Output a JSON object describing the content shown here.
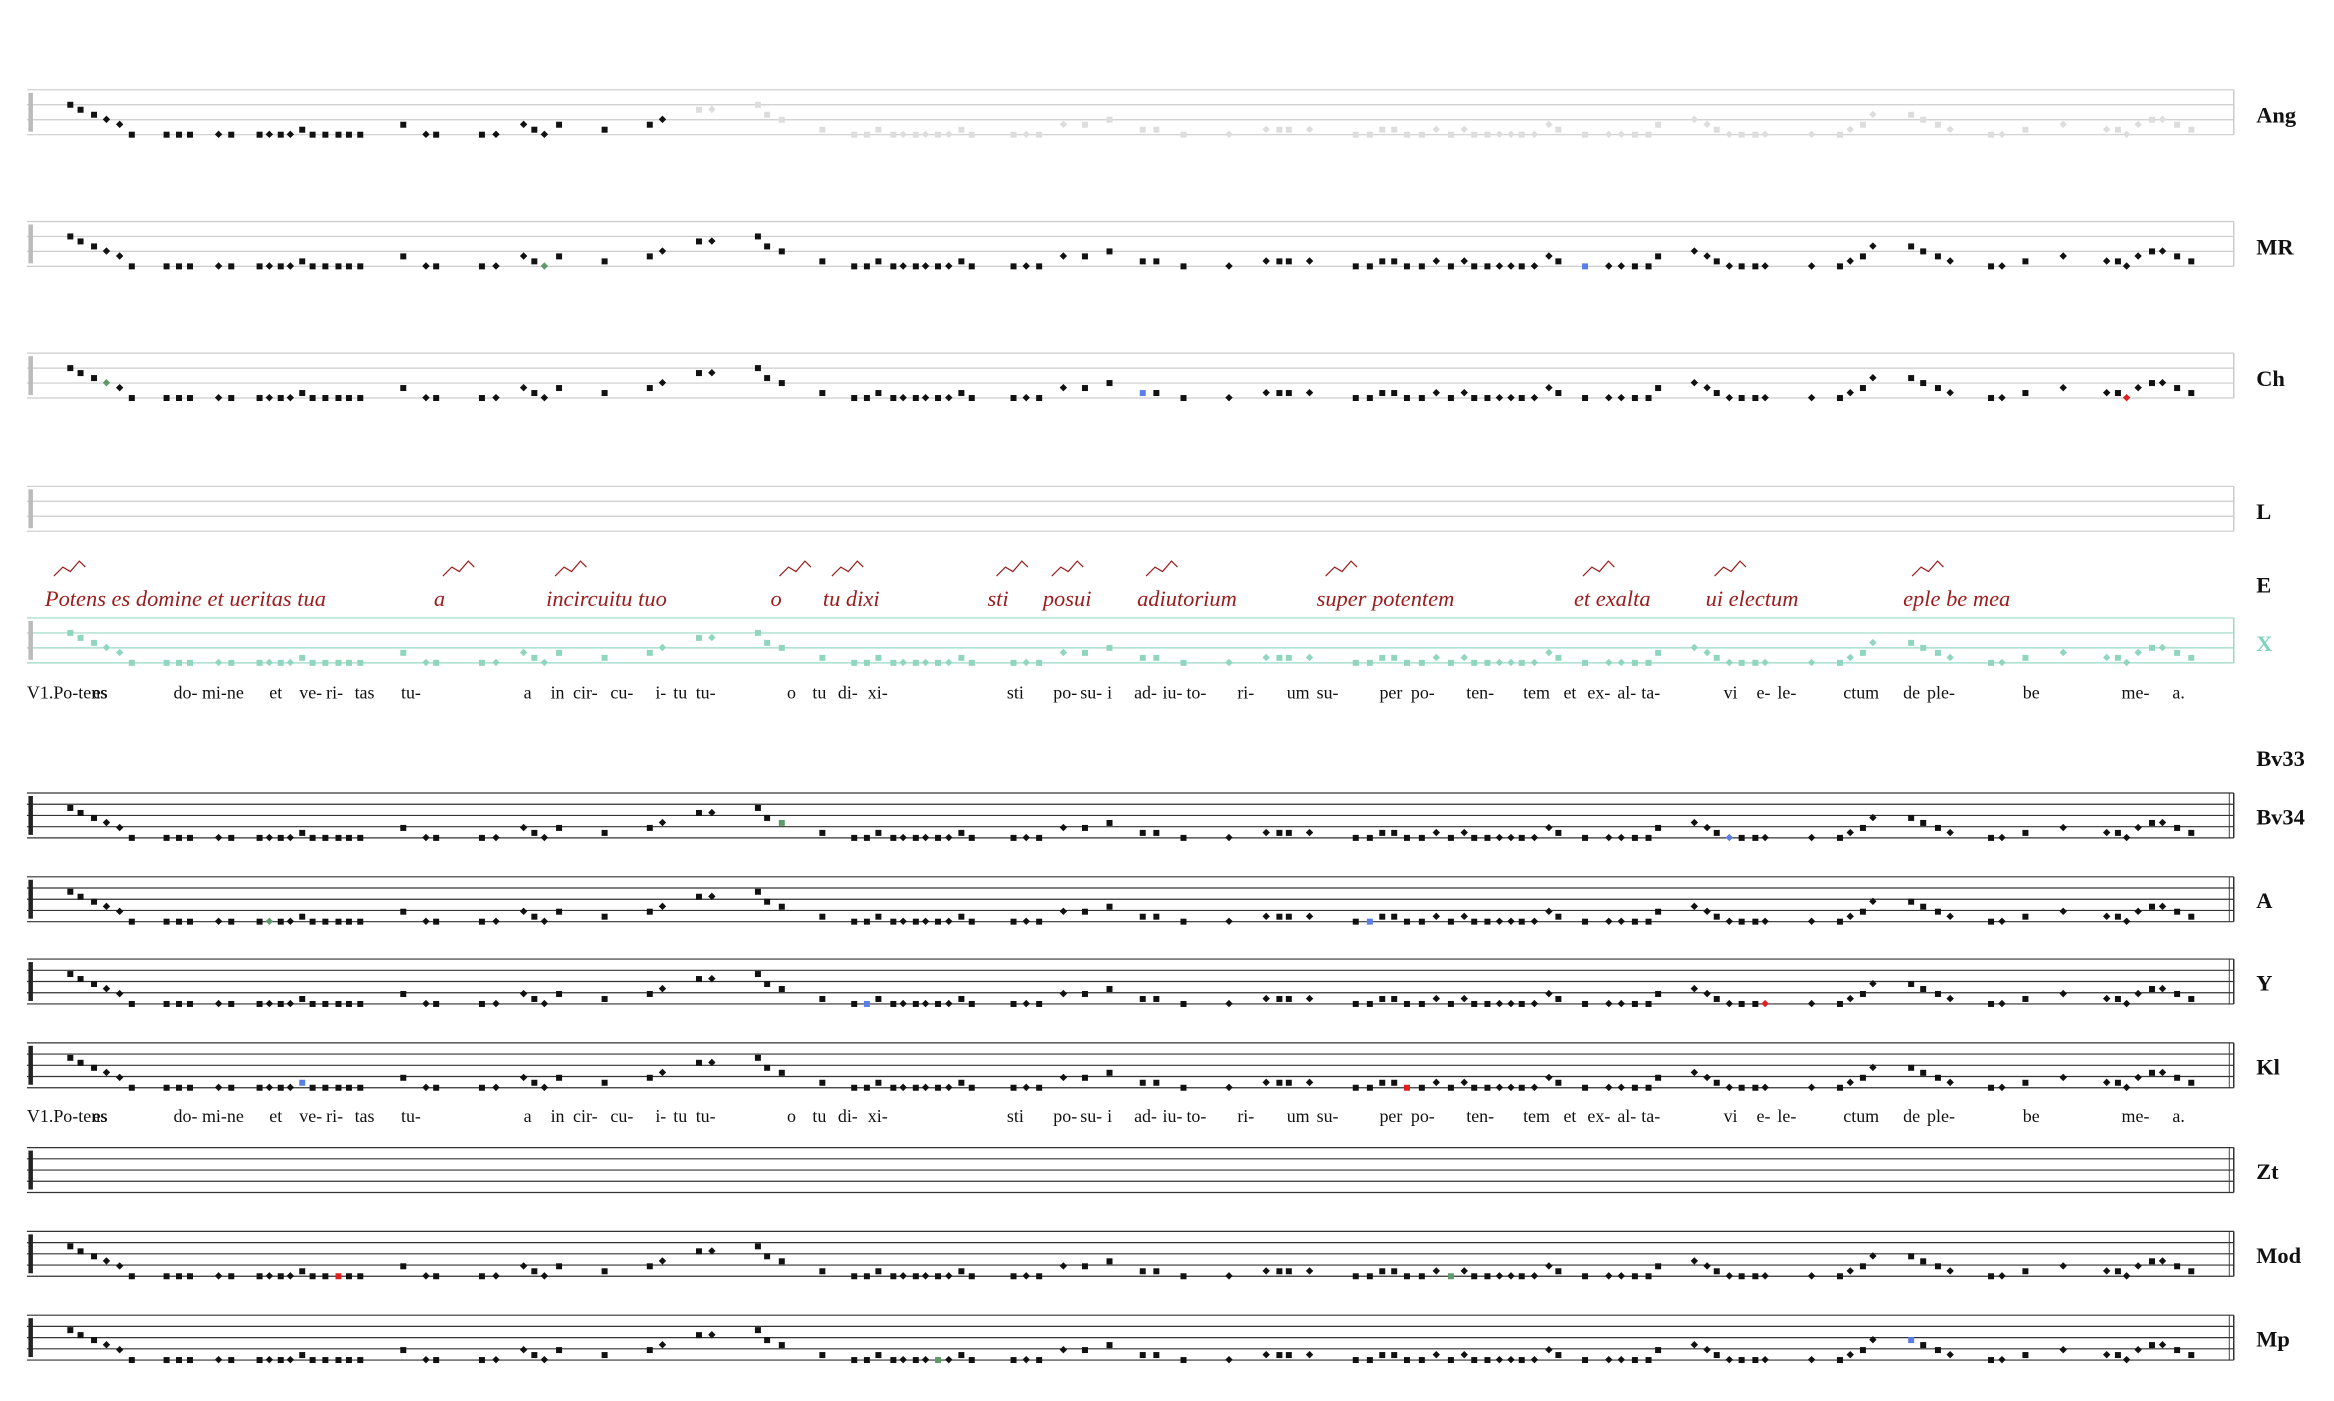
{
  "staves": [
    {
      "label": "Ang"
    },
    {
      "label": "MR"
    },
    {
      "label": "Ch"
    },
    {
      "label": "L"
    },
    {
      "label": "E"
    },
    {
      "label": "X"
    },
    {
      "label": "Bv33"
    },
    {
      "label": "Bv34"
    },
    {
      "label": "A"
    },
    {
      "label": "Y"
    },
    {
      "label": "Kl"
    },
    {
      "label": "Zt"
    },
    {
      "label": "Mod"
    },
    {
      "label": "Mp"
    }
  ],
  "manuscript_text": [
    "Potens es domine et ueritas tua",
    "a",
    "incircuitu tuo",
    "o",
    "tu dixi",
    "sti",
    "posui",
    "adiutorium",
    "super potentem",
    "et exalta",
    "ui electum",
    "eple be mea"
  ],
  "lyrics_1": [
    "V1.Po-tens",
    "es",
    "do-",
    "mi-ne",
    "et",
    "ve-",
    "ri-",
    "tas",
    "tu-",
    "a",
    "in",
    "cir-",
    "cu-",
    "i-",
    "tu",
    "tu-",
    "o",
    "tu",
    "di-",
    "xi-",
    "sti",
    "po-",
    "su-",
    "i",
    "ad-",
    "iu-",
    "to-",
    "ri-",
    "um",
    "su-",
    "per",
    "po-",
    "ten-",
    "tem",
    "et",
    "ex-",
    "al-",
    "ta-",
    "vi",
    "e-",
    "le-",
    "ctum",
    "de",
    "ple-",
    "be",
    "me-",
    "a."
  ],
  "lyrics_2": [
    "V1.Po-tens",
    "es",
    "do-",
    "mi-ne",
    "et",
    "ve-",
    "ri-",
    "tas",
    "tu-",
    "a",
    "in",
    "cir-",
    "cu-",
    "i-",
    "tu",
    "tu-",
    "o",
    "tu",
    "di-",
    "xi-",
    "sti",
    "po-",
    "su-",
    "i",
    "ad-",
    "iu-",
    "to-",
    "ri-",
    "um",
    "su-",
    "per",
    "po-",
    "ten-",
    "tem",
    "et",
    "ex-",
    "al-",
    "ta-",
    "vi",
    "e-",
    "le-",
    "ctum",
    "de",
    "ple-",
    "be",
    "me-",
    "a."
  ]
}
